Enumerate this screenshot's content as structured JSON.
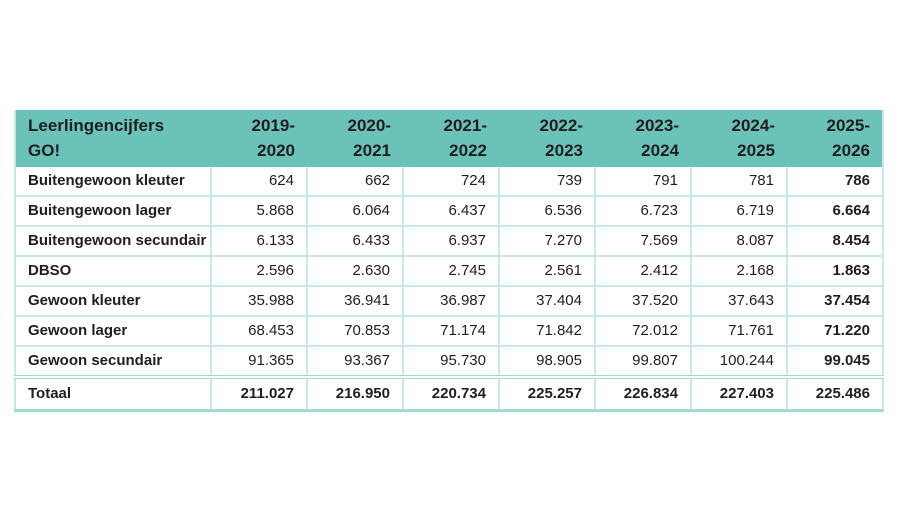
{
  "colors": {
    "header_bg": "#6bc2b9",
    "border_light": "#c9e9e4",
    "border_medium": "#a5dbd4",
    "text": "#1f1f1f"
  },
  "table": {
    "title": {
      "line1": "Leerlingencijfers",
      "line2": "GO!"
    },
    "year_columns": [
      {
        "line1": "2019-",
        "line2": "2020"
      },
      {
        "line1": "2020-",
        "line2": "2021"
      },
      {
        "line1": "2021-",
        "line2": "2022"
      },
      {
        "line1": "2022-",
        "line2": "2023"
      },
      {
        "line1": "2023-",
        "line2": "2024"
      },
      {
        "line1": "2024-",
        "line2": "2025"
      },
      {
        "line1": "2025-",
        "line2": "2026"
      }
    ],
    "rows": [
      {
        "label": "Buitengewoon kleuter",
        "values": [
          "624",
          "662",
          "724",
          "739",
          "791",
          "781",
          "786"
        ]
      },
      {
        "label": "Buitengewoon lager",
        "values": [
          "5.868",
          "6.064",
          "6.437",
          "6.536",
          "6.723",
          "6.719",
          "6.664"
        ]
      },
      {
        "label": "Buitengewoon secundair",
        "values": [
          "6.133",
          "6.433",
          "6.937",
          "7.270",
          "7.569",
          "8.087",
          "8.454"
        ]
      },
      {
        "label": "DBSO",
        "values": [
          "2.596",
          "2.630",
          "2.745",
          "2.561",
          "2.412",
          "2.168",
          "1.863"
        ]
      },
      {
        "label": "Gewoon kleuter",
        "values": [
          "35.988",
          "36.941",
          "36.987",
          "37.404",
          "37.520",
          "37.643",
          "37.454"
        ]
      },
      {
        "label": "Gewoon lager",
        "values": [
          "68.453",
          "70.853",
          "71.174",
          "71.842",
          "72.012",
          "71.761",
          "71.220"
        ]
      },
      {
        "label": "Gewoon secundair",
        "values": [
          "91.365",
          "93.367",
          "95.730",
          "98.905",
          "99.807",
          "100.244",
          "99.045"
        ]
      }
    ],
    "total": {
      "label": "Totaal",
      "values": [
        "211.027",
        "216.950",
        "220.734",
        "225.257",
        "226.834",
        "227.403",
        "225.486"
      ]
    }
  },
  "chart_data": {
    "type": "table",
    "title": "Leerlingencijfers GO!",
    "columns": [
      "2019-2020",
      "2020-2021",
      "2021-2022",
      "2022-2023",
      "2023-2024",
      "2024-2025",
      "2025-2026"
    ],
    "rows": [
      {
        "label": "Buitengewoon kleuter",
        "values": [
          624,
          662,
          724,
          739,
          791,
          781,
          786
        ]
      },
      {
        "label": "Buitengewoon lager",
        "values": [
          5868,
          6064,
          6437,
          6536,
          6723,
          6719,
          6664
        ]
      },
      {
        "label": "Buitengewoon secundair",
        "values": [
          6133,
          6433,
          6937,
          7270,
          7569,
          8087,
          8454
        ]
      },
      {
        "label": "DBSO",
        "values": [
          2596,
          2630,
          2745,
          2561,
          2412,
          2168,
          1863
        ]
      },
      {
        "label": "Gewoon kleuter",
        "values": [
          35988,
          36941,
          36987,
          37404,
          37520,
          37643,
          37454
        ]
      },
      {
        "label": "Gewoon lager",
        "values": [
          68453,
          70853,
          71174,
          71842,
          72012,
          71761,
          71220
        ]
      },
      {
        "label": "Gewoon secundair",
        "values": [
          91365,
          93367,
          95730,
          98905,
          99807,
          100244,
          99045
        ]
      },
      {
        "label": "Totaal",
        "values": [
          211027,
          216950,
          220734,
          225257,
          226834,
          227403,
          225486
        ]
      }
    ]
  }
}
